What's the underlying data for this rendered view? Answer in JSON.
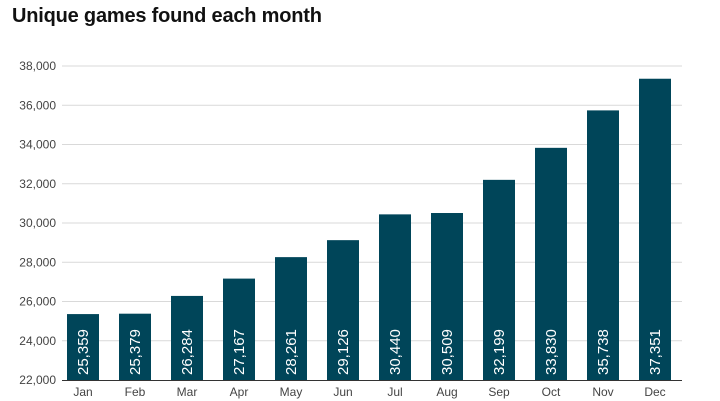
{
  "chart_data": {
    "type": "bar",
    "title": "Unique games found each month",
    "xlabel": "",
    "ylabel": "",
    "categories": [
      "Jan",
      "Feb",
      "Mar",
      "Apr",
      "May",
      "Jun",
      "Jul",
      "Aug",
      "Sep",
      "Oct",
      "Nov",
      "Dec"
    ],
    "values": [
      25359,
      25379,
      26284,
      27167,
      28261,
      29126,
      30440,
      30509,
      32199,
      33830,
      35738,
      37351
    ],
    "value_labels": [
      "25,359",
      "25,379",
      "26,284",
      "27,167",
      "28,261",
      "29,126",
      "30,440",
      "30,509",
      "32,199",
      "33,830",
      "35,738",
      "37,351"
    ],
    "ylim": [
      22000,
      38000
    ],
    "yticks": [
      22000,
      24000,
      26000,
      28000,
      30000,
      32000,
      34000,
      36000,
      38000
    ],
    "ytick_labels": [
      "22,000",
      "24,000",
      "26,000",
      "28,000",
      "30,000",
      "32,000",
      "34,000",
      "36,000",
      "38,000"
    ],
    "grid": true,
    "legend": "none",
    "colors": {
      "bar": "#004559",
      "grid": "#d9d9d9",
      "axis": "#333333"
    }
  }
}
